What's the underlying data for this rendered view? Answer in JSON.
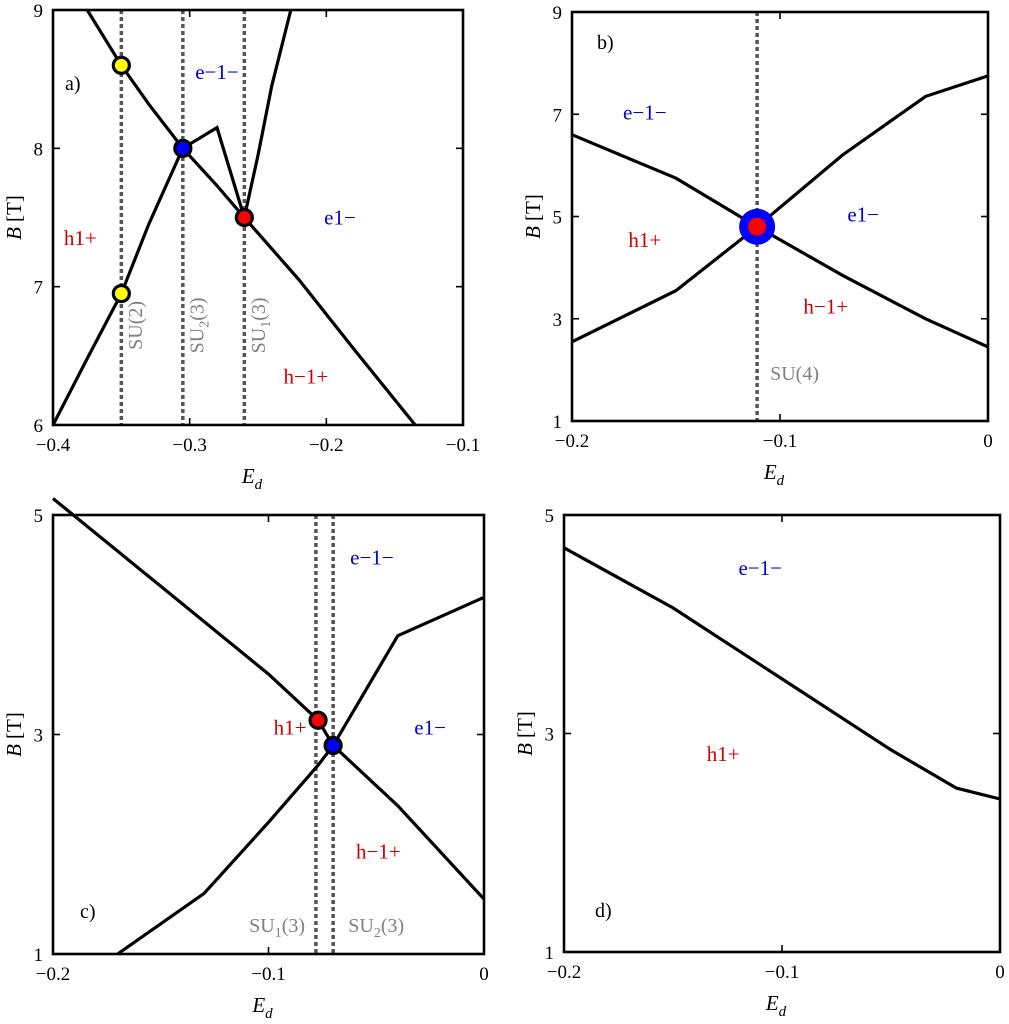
{
  "chart_data": [
    {
      "type": "line",
      "panel": "a)",
      "xlabel": "E",
      "xlabel_sub": "d",
      "ylabel_var": "B",
      "ylabel_unit": "[T]",
      "xlim": [
        -0.4,
        -0.1
      ],
      "ylim": [
        6,
        9
      ],
      "xticks": [
        -0.4,
        -0.3,
        -0.2,
        -0.1
      ],
      "xtick_labels": [
        "−0.4",
        "−0.3",
        "−0.2",
        "−0.1"
      ],
      "yticks": [
        6,
        7,
        8,
        9
      ],
      "ytick_labels": [
        "6",
        "7",
        "8",
        "9"
      ],
      "series": [
        {
          "name": "curve-1",
          "x": [
            -0.375,
            -0.35,
            -0.33,
            -0.305,
            -0.28,
            -0.26,
            -0.22,
            -0.18,
            -0.135
          ],
          "y": [
            9.0,
            8.6,
            8.32,
            8.0,
            7.73,
            7.5,
            7.05,
            6.55,
            6.0
          ]
        },
        {
          "name": "curve-2",
          "x": [
            -0.4,
            -0.375,
            -0.35,
            -0.33,
            -0.305,
            -0.28,
            -0.26,
            -0.25,
            -0.24,
            -0.226
          ],
          "y": [
            6.0,
            6.48,
            6.95,
            7.45,
            8.0,
            8.15,
            7.5,
            7.95,
            8.45,
            9.0
          ]
        }
      ],
      "vlines": [
        -0.35,
        -0.305,
        -0.26
      ],
      "points": [
        {
          "x": -0.35,
          "y": 8.6,
          "color": "#ffff00",
          "size": "small"
        },
        {
          "x": -0.305,
          "y": 8.0,
          "color": "#0000ff",
          "size": "small"
        },
        {
          "x": -0.26,
          "y": 7.5,
          "color": "#ff0000",
          "size": "small"
        },
        {
          "x": -0.35,
          "y": 6.95,
          "color": "#ffff00",
          "size": "small"
        }
      ],
      "regions": [
        {
          "text": "e−1−",
          "color": "#0000cc",
          "x": -0.28,
          "y": 8.5
        },
        {
          "text": "e1−",
          "color": "#0000cc",
          "x": -0.19,
          "y": 7.45
        },
        {
          "text": "h1+",
          "color": "#cc0000",
          "x": -0.38,
          "y": 7.3
        },
        {
          "text": "h−1+",
          "color": "#cc0000",
          "x": -0.215,
          "y": 6.3
        }
      ],
      "su_labels": [
        {
          "main": "SU",
          "sub": "",
          "tail": "(2)",
          "x": -0.335,
          "y": 6.72
        },
        {
          "main": "SU",
          "sub": "2",
          "tail": "(3)",
          "x": -0.29,
          "y": 6.72
        },
        {
          "main": "SU",
          "sub": "1",
          "tail": "(3)",
          "x": -0.245,
          "y": 6.72
        }
      ]
    },
    {
      "type": "line",
      "panel": "b)",
      "xlabel": "E",
      "xlabel_sub": "d",
      "ylabel_var": "B",
      "ylabel_unit": "[T]",
      "xlim": [
        -0.2,
        0
      ],
      "ylim": [
        1,
        9
      ],
      "xticks": [
        -0.2,
        -0.1,
        0
      ],
      "xtick_labels": [
        "−0.2",
        "−0.1",
        "0"
      ],
      "yticks": [
        1,
        3,
        5,
        7,
        9
      ],
      "ytick_labels": [
        "1",
        "3",
        "5",
        "7",
        "9"
      ],
      "series": [
        {
          "name": "curve-1",
          "x": [
            -0.2,
            -0.15,
            -0.111,
            -0.07,
            -0.03,
            0
          ],
          "y": [
            6.6,
            5.75,
            4.8,
            3.85,
            3.0,
            2.45
          ]
        },
        {
          "name": "curve-2",
          "x": [
            -0.2,
            -0.15,
            -0.111,
            -0.07,
            -0.03,
            0
          ],
          "y": [
            2.55,
            3.55,
            4.8,
            6.2,
            7.35,
            7.75
          ]
        }
      ],
      "vlines": [
        -0.111
      ],
      "points": [
        {
          "x": -0.111,
          "y": 4.8,
          "color": "#ff0000",
          "ring": "#0000ff",
          "size": "large"
        }
      ],
      "regions": [
        {
          "text": "e−1−",
          "color": "#0000cc",
          "x": -0.165,
          "y": 6.9
        },
        {
          "text": "e1−",
          "color": "#0000cc",
          "x": -0.06,
          "y": 4.9
        },
        {
          "text": "h1+",
          "color": "#cc0000",
          "x": -0.165,
          "y": 4.4
        },
        {
          "text": "h−1+",
          "color": "#cc0000",
          "x": -0.078,
          "y": 3.1
        }
      ],
      "su_labels": [
        {
          "main": "SU",
          "sub": "",
          "tail": "(4)",
          "x": -0.093,
          "y": 1.8
        }
      ]
    },
    {
      "type": "line",
      "panel": "c)",
      "xlabel": "E",
      "xlabel_sub": "d",
      "ylabel_var": "B",
      "ylabel_unit": "[T]",
      "xlim": [
        -0.2,
        0
      ],
      "ylim": [
        1,
        5
      ],
      "xticks": [
        -0.2,
        -0.1,
        0
      ],
      "xtick_labels": [
        "−0.2",
        "−0.1",
        "0"
      ],
      "yticks": [
        1,
        3,
        5
      ],
      "ytick_labels": [
        "1",
        "3",
        "5"
      ],
      "series": [
        {
          "name": "curve-1",
          "x": [
            -0.2,
            -0.15,
            -0.1,
            -0.077,
            -0.07,
            -0.04,
            0
          ],
          "y": [
            5.15,
            4.35,
            3.55,
            3.13,
            2.9,
            2.35,
            1.5
          ]
        },
        {
          "name": "curve-2",
          "x": [
            -0.17,
            -0.13,
            -0.1,
            -0.077,
            -0.07,
            -0.04,
            0
          ],
          "y": [
            1.0,
            1.55,
            2.2,
            2.72,
            2.9,
            3.9,
            4.25
          ]
        }
      ],
      "vlines": [
        -0.078,
        -0.07
      ],
      "points": [
        {
          "x": -0.077,
          "y": 3.13,
          "color": "#ff0000",
          "size": "small"
        },
        {
          "x": -0.07,
          "y": 2.9,
          "color": "#0000ff",
          "size": "small"
        }
      ],
      "regions": [
        {
          "text": "e−1−",
          "color": "#0000cc",
          "x": -0.052,
          "y": 4.55
        },
        {
          "text": "e1−",
          "color": "#0000cc",
          "x": -0.025,
          "y": 3.0
        },
        {
          "text": "h1+",
          "color": "#cc0000",
          "x": -0.09,
          "y": 3.0
        },
        {
          "text": "h−1+",
          "color": "#cc0000",
          "x": -0.049,
          "y": 1.87
        }
      ],
      "su_labels": [
        {
          "main": "SU",
          "sub": "1",
          "tail": "(3)",
          "x": -0.096,
          "y": 1.2
        },
        {
          "main": "SU",
          "sub": "2",
          "tail": "(3)",
          "x": -0.05,
          "y": 1.2
        }
      ]
    },
    {
      "type": "line",
      "panel": "d)",
      "xlabel": "E",
      "xlabel_sub": "d",
      "ylabel_var": "B",
      "ylabel_unit": "[T]",
      "xlim": [
        -0.2,
        0
      ],
      "ylim": [
        1,
        5
      ],
      "xticks": [
        -0.2,
        -0.1,
        0
      ],
      "xtick_labels": [
        "−0.2",
        "−0.1",
        "0"
      ],
      "yticks": [
        1,
        3,
        5
      ],
      "ytick_labels": [
        "1",
        "3",
        "5"
      ],
      "series": [
        {
          "name": "curve-1",
          "x": [
            -0.2,
            -0.15,
            -0.1,
            -0.05,
            -0.02,
            0
          ],
          "y": [
            4.7,
            4.15,
            3.5,
            2.85,
            2.5,
            2.4
          ]
        }
      ],
      "vlines": [],
      "points": [],
      "regions": [
        {
          "text": "e−1−",
          "color": "#0000cc",
          "x": -0.11,
          "y": 4.45
        },
        {
          "text": "h1+",
          "color": "#cc0000",
          "x": -0.127,
          "y": 2.75
        }
      ],
      "su_labels": []
    }
  ]
}
